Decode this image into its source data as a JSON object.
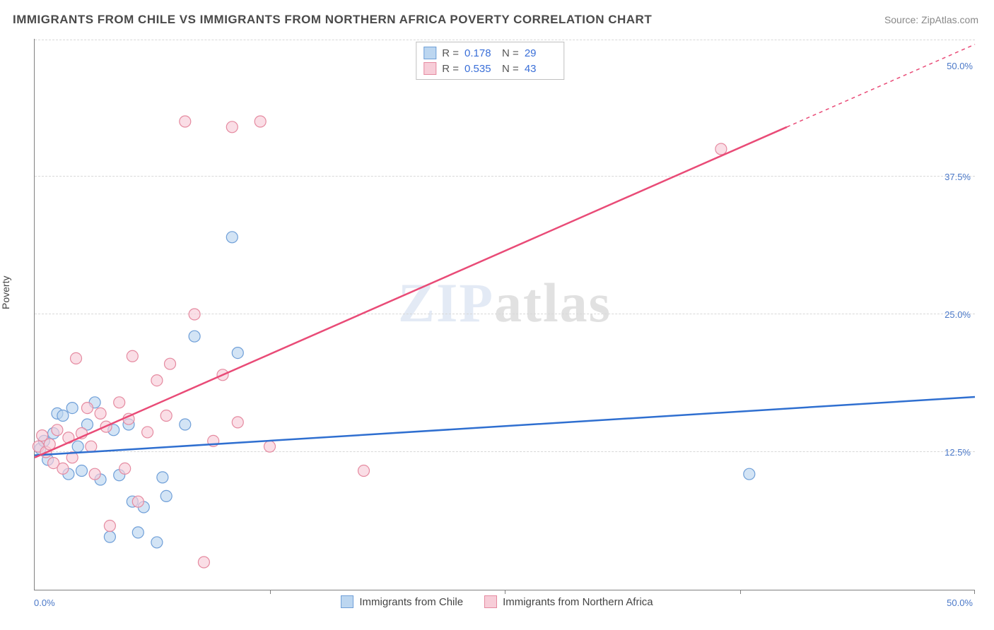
{
  "title": "IMMIGRANTS FROM CHILE VS IMMIGRANTS FROM NORTHERN AFRICA POVERTY CORRELATION CHART",
  "source_label": "Source: ZipAtlas.com",
  "watermark": {
    "part1": "ZIP",
    "part2": "atlas"
  },
  "y_axis_title": "Poverty",
  "chart": {
    "type": "scatter",
    "xlim": [
      0,
      50
    ],
    "ylim": [
      0,
      50
    ],
    "x_tick_step": 12.5,
    "y_tick_step": 12.5,
    "x_min_label": "0.0%",
    "x_max_label": "50.0%",
    "y_tick_labels": [
      "12.5%",
      "25.0%",
      "37.5%",
      "50.0%"
    ],
    "grid_color": "#d8d8d8",
    "axis_color": "#808080",
    "background_color": "#ffffff",
    "marker_radius": 8,
    "marker_stroke_width": 1.2,
    "trend_line_width": 2.5,
    "series": [
      {
        "id": "chile",
        "label": "Immigrants from Chile",
        "fill_color": "#bcd6f0",
        "stroke_color": "#6f9fd8",
        "line_color": "#2f6fd0",
        "r_value": "0.178",
        "n_value": "29",
        "trend": {
          "x1": 0,
          "y1": 12.2,
          "x2": 50,
          "y2": 17.5
        },
        "points": [
          [
            0.3,
            12.8
          ],
          [
            0.5,
            13.5
          ],
          [
            0.7,
            11.8
          ],
          [
            1.0,
            14.2
          ],
          [
            1.2,
            16.0
          ],
          [
            1.5,
            15.8
          ],
          [
            1.8,
            10.5
          ],
          [
            2.0,
            16.5
          ],
          [
            2.3,
            13.0
          ],
          [
            2.5,
            10.8
          ],
          [
            2.8,
            15.0
          ],
          [
            3.2,
            17.0
          ],
          [
            3.5,
            10.0
          ],
          [
            4.0,
            4.8
          ],
          [
            4.2,
            14.5
          ],
          [
            4.5,
            10.4
          ],
          [
            5.0,
            15.0
          ],
          [
            5.2,
            8.0
          ],
          [
            5.5,
            5.2
          ],
          [
            5.8,
            7.5
          ],
          [
            6.5,
            4.3
          ],
          [
            6.8,
            10.2
          ],
          [
            7.0,
            8.5
          ],
          [
            8.0,
            15.0
          ],
          [
            8.5,
            23.0
          ],
          [
            10.5,
            32.0
          ],
          [
            10.8,
            21.5
          ],
          [
            38.0,
            10.5
          ]
        ]
      },
      {
        "id": "nafrica",
        "label": "Immigrants from Northern Africa",
        "fill_color": "#f7cdd8",
        "stroke_color": "#e58aa0",
        "line_color": "#e94b77",
        "r_value": "0.535",
        "n_value": "43",
        "trend_solid": {
          "x1": 0,
          "y1": 12.0,
          "x2": 40,
          "y2": 42.0
        },
        "trend_dashed": {
          "x1": 40,
          "y1": 42.0,
          "x2": 50,
          "y2": 49.5
        },
        "points": [
          [
            0.2,
            13.0
          ],
          [
            0.4,
            14.0
          ],
          [
            0.6,
            12.5
          ],
          [
            0.8,
            13.2
          ],
          [
            1.0,
            11.5
          ],
          [
            1.2,
            14.5
          ],
          [
            1.5,
            11.0
          ],
          [
            1.8,
            13.8
          ],
          [
            2.0,
            12.0
          ],
          [
            2.2,
            21.0
          ],
          [
            2.5,
            14.2
          ],
          [
            2.8,
            16.5
          ],
          [
            3.0,
            13.0
          ],
          [
            3.2,
            10.5
          ],
          [
            3.5,
            16.0
          ],
          [
            3.8,
            14.8
          ],
          [
            4.0,
            5.8
          ],
          [
            4.5,
            17.0
          ],
          [
            4.8,
            11.0
          ],
          [
            5.0,
            15.5
          ],
          [
            5.2,
            21.2
          ],
          [
            5.5,
            8.0
          ],
          [
            6.0,
            14.3
          ],
          [
            6.5,
            19.0
          ],
          [
            7.0,
            15.8
          ],
          [
            7.2,
            20.5
          ],
          [
            8.0,
            42.5
          ],
          [
            8.5,
            25.0
          ],
          [
            9.0,
            2.5
          ],
          [
            9.5,
            13.5
          ],
          [
            10.0,
            19.5
          ],
          [
            10.5,
            42.0
          ],
          [
            10.8,
            15.2
          ],
          [
            12.0,
            42.5
          ],
          [
            12.5,
            13.0
          ],
          [
            17.5,
            10.8
          ],
          [
            36.5,
            40.0
          ]
        ]
      }
    ]
  },
  "legend_top": {
    "r_prefix": "R  =",
    "n_prefix": "N  ="
  }
}
